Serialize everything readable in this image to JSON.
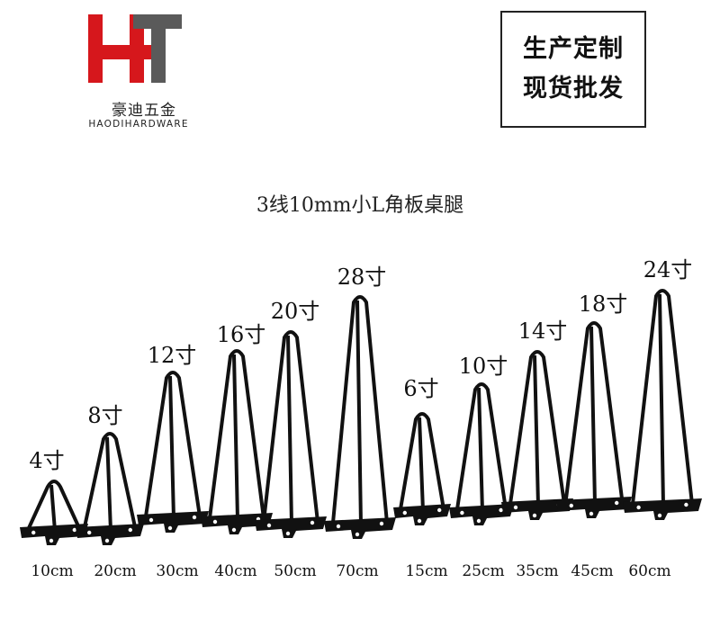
{
  "brand": {
    "name_cn": "豪迪五金",
    "name_en": "HAODIHARDWARE",
    "colors": {
      "red": "#d6171c",
      "gray": "#5a5a5a"
    }
  },
  "badge": {
    "line1": "生产定制",
    "line2": "现货批发"
  },
  "title": "3线10mm小L角板桌腿",
  "legs": [
    {
      "size": "4寸",
      "length": "10cm"
    },
    {
      "size": "8寸",
      "length": "20cm"
    },
    {
      "size": "12寸",
      "length": "30cm"
    },
    {
      "size": "16寸",
      "length": "40cm"
    },
    {
      "size": "20寸",
      "length": "50cm"
    },
    {
      "size": "28寸",
      "length": "70cm"
    },
    {
      "size": "6寸",
      "length": "15cm"
    },
    {
      "size": "10寸",
      "length": "25cm"
    },
    {
      "size": "14寸",
      "length": "35cm"
    },
    {
      "size": "18寸",
      "length": "45cm"
    },
    {
      "size": "24寸",
      "length": "60cm"
    }
  ]
}
